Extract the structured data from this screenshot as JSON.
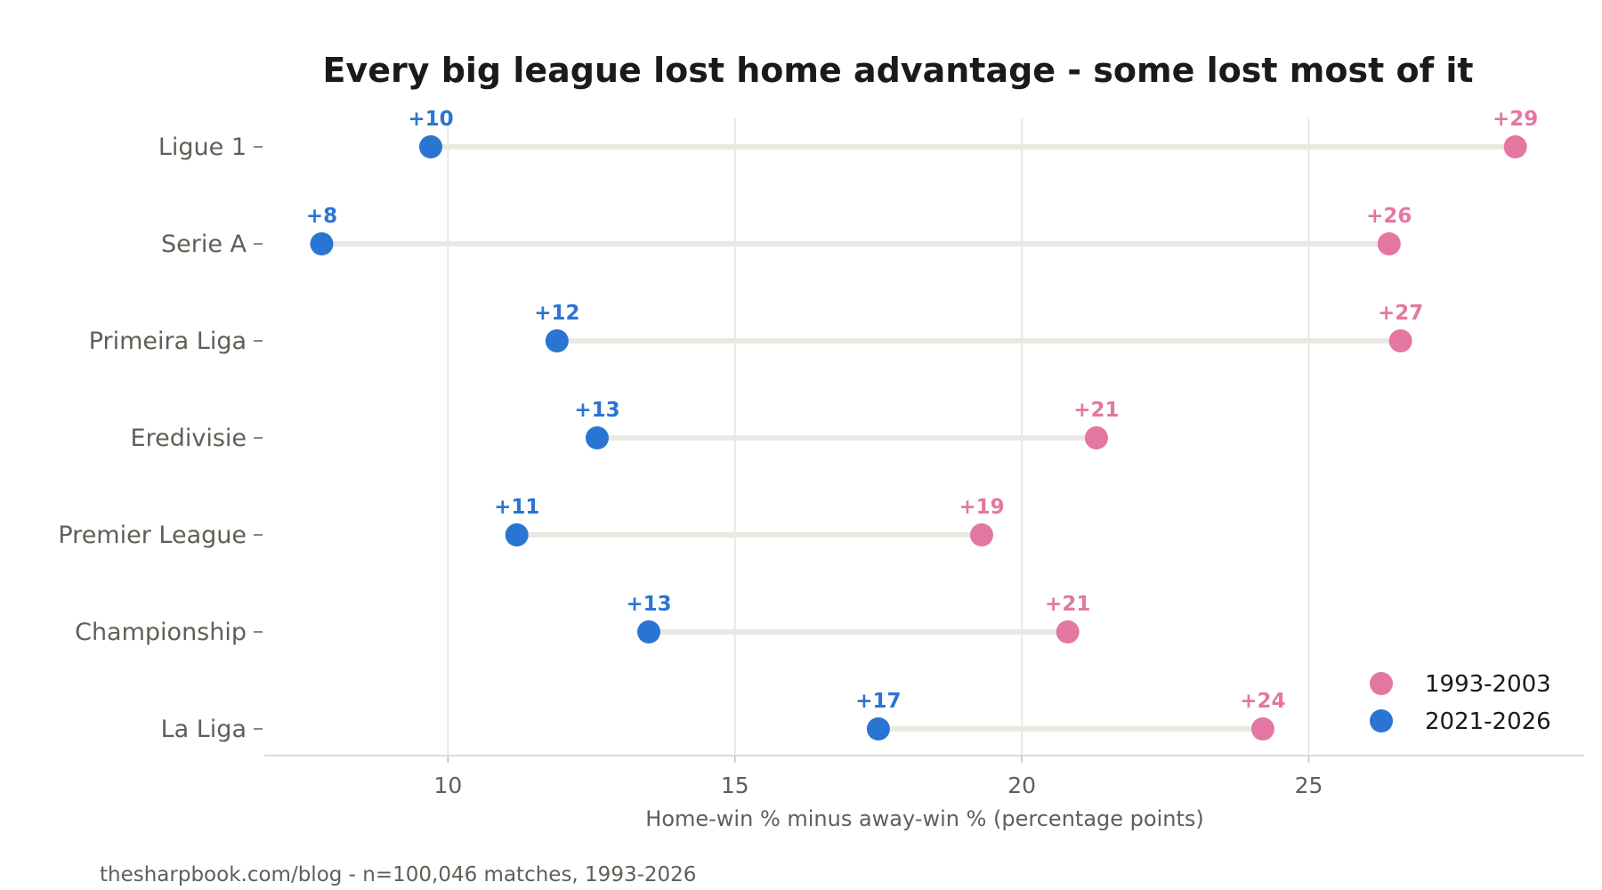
{
  "chart_data": {
    "type": "dumbbell",
    "title": "Every big league lost home advantage - some lost most of it",
    "xlabel": "Home-win % minus away-win % (percentage points)",
    "ylabel": "",
    "xlim": [
      6.8,
      29.8
    ],
    "xticks": [
      10,
      15,
      20,
      25
    ],
    "grid": "vertical",
    "legend_position": "bottom-right",
    "categories": [
      "Ligue 1",
      "Serie A",
      "Primeira Liga",
      "Eredivisie",
      "Premier League",
      "Championship",
      "La Liga"
    ],
    "series": [
      {
        "name": "1993-2003",
        "color": "#e377a2",
        "values": [
          28.6,
          26.4,
          26.6,
          21.3,
          19.3,
          20.8,
          24.2
        ],
        "labels": [
          "+29",
          "+26",
          "+27",
          "+21",
          "+19",
          "+21",
          "+24"
        ]
      },
      {
        "name": "2021-2026",
        "color": "#2a75d3",
        "values": [
          9.7,
          7.8,
          11.9,
          12.6,
          11.2,
          13.5,
          17.5
        ],
        "labels": [
          "+10",
          "+8",
          "+12",
          "+13",
          "+11",
          "+13",
          "+17"
        ]
      }
    ],
    "source": "thesharpbook.com/blog - n=100,046 matches, 1993-2026"
  }
}
